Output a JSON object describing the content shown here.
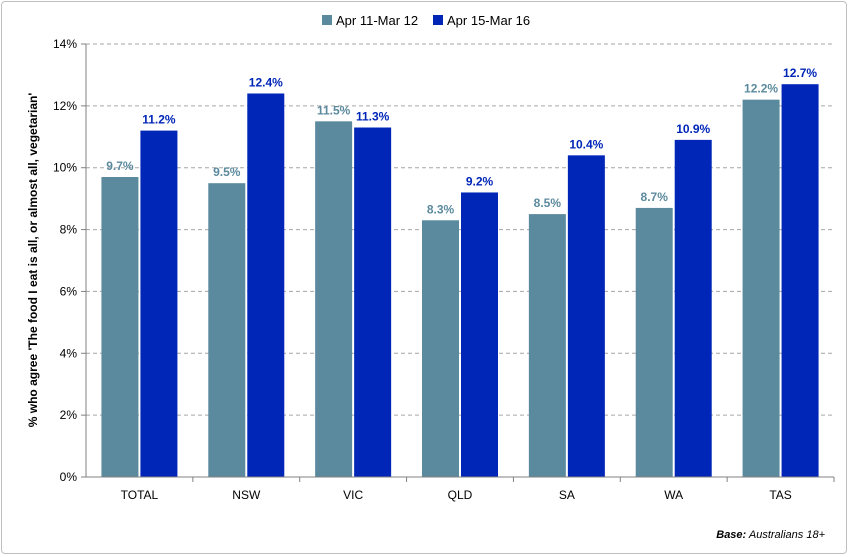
{
  "chart_data": {
    "type": "bar",
    "categories": [
      "TOTAL",
      "NSW",
      "VIC",
      "QLD",
      "SA",
      "WA",
      "TAS"
    ],
    "series": [
      {
        "name": "Apr 11-Mar 12",
        "color": "#5b8a9e",
        "values": [
          9.7,
          9.5,
          11.5,
          8.3,
          8.5,
          8.7,
          12.2
        ],
        "labels": [
          "9.7%",
          "9.5%",
          "11.5%",
          "8.3%",
          "8.5%",
          "8.7%",
          "12.2%"
        ]
      },
      {
        "name": "Apr 15-Mar 16",
        "color": "#0026b8",
        "values": [
          11.2,
          12.4,
          11.3,
          9.2,
          10.4,
          10.9,
          12.7
        ],
        "labels": [
          "11.2%",
          "12.4%",
          "11.3%",
          "9.2%",
          "10.4%",
          "10.9%",
          "12.7%"
        ]
      }
    ],
    "ylabel": "% who agree 'The food I eat is all, or almost all, vegetarian'",
    "ylim": [
      0,
      14
    ],
    "yticks": [
      "0%",
      "2%",
      "4%",
      "6%",
      "8%",
      "10%",
      "12%",
      "14%"
    ],
    "grid": true,
    "legend_position": "top-center",
    "footnote": {
      "bold": "Base:",
      "text": " Australians 18+"
    }
  }
}
